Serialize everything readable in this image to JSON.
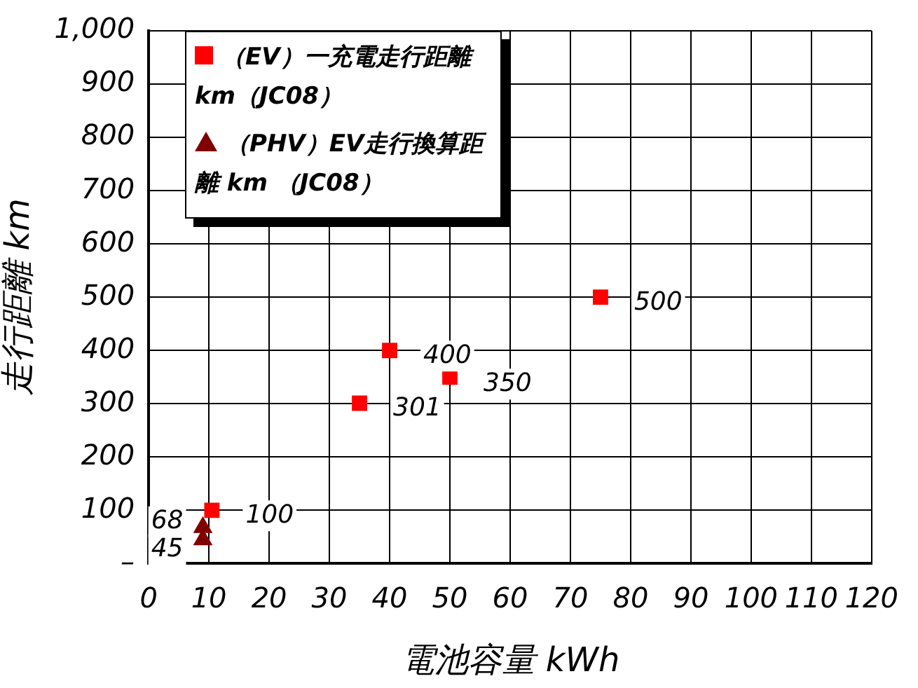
{
  "chart_data": {
    "type": "scatter",
    "xlabel": "電池容量 kWh",
    "ylabel": "走行距離 km",
    "xlim": [
      0,
      120
    ],
    "xticks": [
      0,
      10,
      20,
      30,
      40,
      50,
      60,
      70,
      80,
      90,
      100,
      110,
      120
    ],
    "ylim": [
      0,
      1000
    ],
    "yticks": [
      {
        "value": 0,
        "label": "–"
      },
      100,
      200,
      300,
      400,
      500,
      600,
      700,
      800,
      900,
      {
        "value": 1000,
        "label": "1,000"
      }
    ],
    "grid": true,
    "legend": "top left",
    "data_labels": true,
    "series": [
      {
        "name": "（EV）一充電走行距離 km（JC08）",
        "color": "#ff0000",
        "marker": "square",
        "x": [
          10.5,
          35,
          40,
          50,
          75
        ],
        "values": [
          100,
          301,
          400,
          350,
          500
        ]
      },
      {
        "name": "（PHV）EV走行換算距離 km （JC08）",
        "color": "#800000",
        "marker": "triangle",
        "x": [
          9,
          9
        ],
        "values": [
          68,
          45
        ]
      }
    ]
  }
}
